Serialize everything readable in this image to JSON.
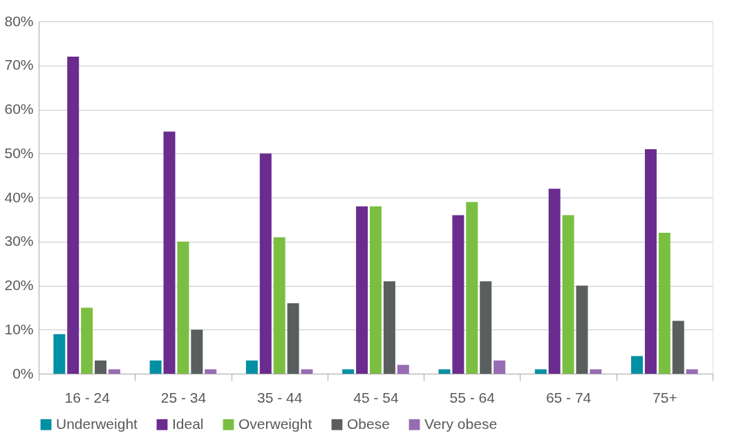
{
  "chart_data": {
    "type": "bar",
    "categories": [
      "16 - 24",
      "25 - 34",
      "35 - 44",
      "45 - 54",
      "55 - 64",
      "65 - 74",
      "75+"
    ],
    "series": [
      {
        "name": "Underweight",
        "color": "#0090a4",
        "values": [
          9,
          3,
          3,
          1,
          1,
          1,
          4
        ]
      },
      {
        "name": "Ideal",
        "color": "#6a2c8f",
        "values": [
          72,
          55,
          50,
          38,
          36,
          42,
          51
        ]
      },
      {
        "name": "Overweight",
        "color": "#7bbf42",
        "values": [
          15,
          30,
          31,
          38,
          39,
          36,
          32
        ]
      },
      {
        "name": "Obese",
        "color": "#5b5e5f",
        "values": [
          3,
          10,
          16,
          21,
          21,
          20,
          12
        ]
      },
      {
        "name": "Very obese",
        "color": "#976cb3",
        "values": [
          1,
          1,
          1,
          2,
          3,
          1,
          1
        ]
      }
    ],
    "ylim": [
      0,
      80
    ],
    "yticks": [
      {
        "value": 0,
        "label": "0%"
      },
      {
        "value": 10,
        "label": "10%"
      },
      {
        "value": 20,
        "label": "20%"
      },
      {
        "value": 30,
        "label": "30%"
      },
      {
        "value": 40,
        "label": "40%"
      },
      {
        "value": 50,
        "label": "50%"
      },
      {
        "value": 60,
        "label": "60%"
      },
      {
        "value": 70,
        "label": "70%"
      },
      {
        "value": 80,
        "label": "80%"
      }
    ],
    "grid": "y",
    "legend": "bottom"
  }
}
